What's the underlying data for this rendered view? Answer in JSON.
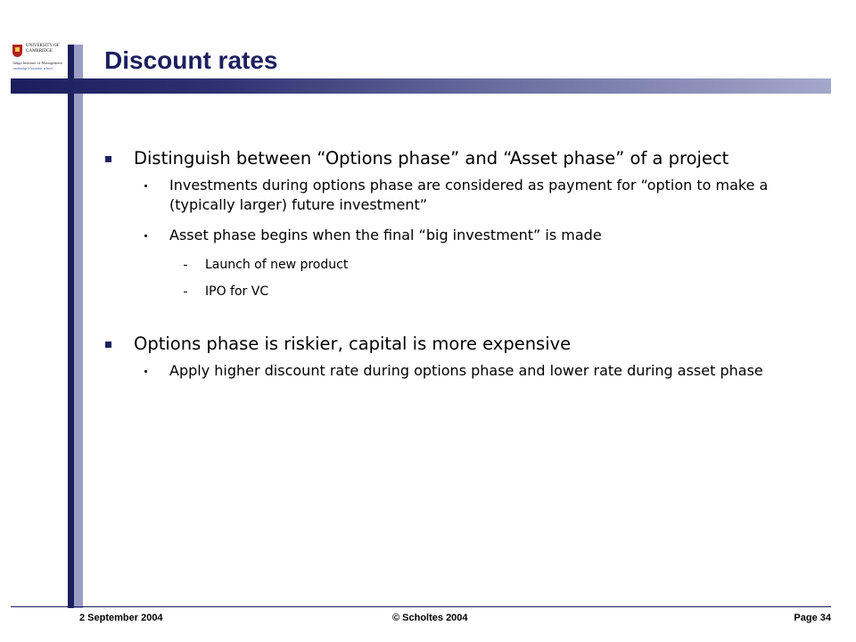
{
  "logo": {
    "line1": "UNIVERSITY OF",
    "line2": "CAMBRIDGE",
    "sub": "Judge Institute of Management",
    "tag": "cambridge's business school"
  },
  "slide": {
    "title": "Discount rates",
    "bullets": [
      {
        "level": 1,
        "text": "Distinguish between “Options phase” and “Asset phase” of a project"
      },
      {
        "level": 2,
        "text": "Investments during options phase are considered as payment for “option to make a (typically larger) future investment”"
      },
      {
        "level": 2,
        "text": "Asset phase begins when the final “big investment” is made"
      },
      {
        "level": 3,
        "text": "Launch of new product"
      },
      {
        "level": 3,
        "text": "IPO for VC"
      },
      {
        "level": 1,
        "text": "Options phase is riskier, capital is more expensive"
      },
      {
        "level": 2,
        "text": "Apply higher discount rate during options phase and lower rate during asset phase"
      }
    ]
  },
  "footer": {
    "date": "2 September 2004",
    "copyright": "© Scholtes 2004",
    "page": "Page 34"
  },
  "colors": {
    "accent": "#1c1f5e",
    "accent_light": "#9a9ec4"
  }
}
